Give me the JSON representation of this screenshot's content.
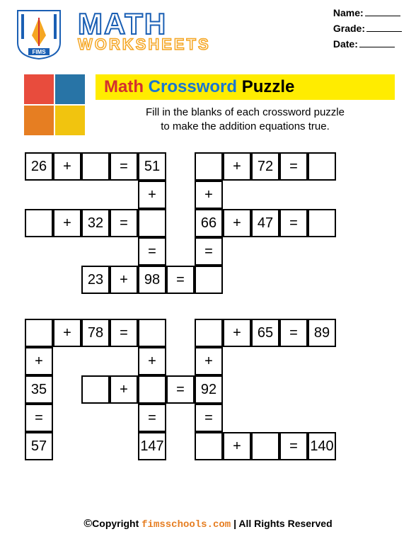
{
  "header": {
    "title_main": "MATH",
    "title_sub": "WORKSHEETS",
    "logo_text": "FIMS",
    "fields": {
      "name": "Name:",
      "grade": "Grade:",
      "date": "Date:"
    }
  },
  "banner": {
    "w1": "Math",
    "w2": "Crossword",
    "w3": "Puzzle"
  },
  "instructions": "Fill in the blanks of each crossword puzzle\nto make the addition equations true.",
  "colors": {
    "banner_bg": "#ffec00",
    "w1": "#d32f2f",
    "w2": "#1976d2",
    "w3": "#000000",
    "pz_red": "#e84c3d",
    "pz_blue": "#2874a6",
    "pz_orange": "#e67e22",
    "pz_yellow": "#f1c40f"
  },
  "grid1": {
    "cell_size": 40,
    "cells": [
      {
        "r": 0,
        "c": 0,
        "v": "26",
        "b": 1
      },
      {
        "r": 0,
        "c": 1,
        "v": "+",
        "b": 1
      },
      {
        "r": 0,
        "c": 2,
        "v": "",
        "b": 1
      },
      {
        "r": 0,
        "c": 3,
        "v": "=",
        "b": 1
      },
      {
        "r": 0,
        "c": 4,
        "v": "51",
        "b": 1
      },
      {
        "r": 0,
        "c": 6,
        "v": "",
        "b": 1
      },
      {
        "r": 0,
        "c": 7,
        "v": "+",
        "b": 1
      },
      {
        "r": 0,
        "c": 8,
        "v": "72",
        "b": 1
      },
      {
        "r": 0,
        "c": 9,
        "v": "=",
        "b": 1
      },
      {
        "r": 0,
        "c": 10,
        "v": "",
        "b": 1
      },
      {
        "r": 1,
        "c": 4,
        "v": "+",
        "b": 1
      },
      {
        "r": 1,
        "c": 6,
        "v": "+",
        "b": 1
      },
      {
        "r": 2,
        "c": 0,
        "v": "",
        "b": 1
      },
      {
        "r": 2,
        "c": 1,
        "v": "+",
        "b": 1
      },
      {
        "r": 2,
        "c": 2,
        "v": "32",
        "b": 1
      },
      {
        "r": 2,
        "c": 3,
        "v": "=",
        "b": 1
      },
      {
        "r": 2,
        "c": 4,
        "v": "",
        "b": 1
      },
      {
        "r": 2,
        "c": 6,
        "v": "66",
        "b": 1
      },
      {
        "r": 2,
        "c": 7,
        "v": "+",
        "b": 1
      },
      {
        "r": 2,
        "c": 8,
        "v": "47",
        "b": 1
      },
      {
        "r": 2,
        "c": 9,
        "v": "=",
        "b": 1
      },
      {
        "r": 2,
        "c": 10,
        "v": "",
        "b": 1
      },
      {
        "r": 3,
        "c": 4,
        "v": "=",
        "b": 1
      },
      {
        "r": 3,
        "c": 6,
        "v": "=",
        "b": 1
      },
      {
        "r": 4,
        "c": 2,
        "v": "23",
        "b": 1
      },
      {
        "r": 4,
        "c": 3,
        "v": "+",
        "b": 1
      },
      {
        "r": 4,
        "c": 4,
        "v": "98",
        "b": 1
      },
      {
        "r": 4,
        "c": 5,
        "v": "=",
        "b": 1
      },
      {
        "r": 4,
        "c": 6,
        "v": "",
        "b": 1
      }
    ]
  },
  "grid2": {
    "cell_size": 40,
    "cells": [
      {
        "r": 0,
        "c": 0,
        "v": "",
        "b": 1
      },
      {
        "r": 0,
        "c": 1,
        "v": "+",
        "b": 1
      },
      {
        "r": 0,
        "c": 2,
        "v": "78",
        "b": 1
      },
      {
        "r": 0,
        "c": 3,
        "v": "=",
        "b": 1
      },
      {
        "r": 0,
        "c": 4,
        "v": "",
        "b": 1
      },
      {
        "r": 0,
        "c": 6,
        "v": "",
        "b": 1
      },
      {
        "r": 0,
        "c": 7,
        "v": "+",
        "b": 1
      },
      {
        "r": 0,
        "c": 8,
        "v": "65",
        "b": 1
      },
      {
        "r": 0,
        "c": 9,
        "v": "=",
        "b": 1
      },
      {
        "r": 0,
        "c": 10,
        "v": "89",
        "b": 1
      },
      {
        "r": 1,
        "c": 0,
        "v": "+",
        "b": 1
      },
      {
        "r": 1,
        "c": 4,
        "v": "+",
        "b": 1
      },
      {
        "r": 1,
        "c": 6,
        "v": "+",
        "b": 1
      },
      {
        "r": 2,
        "c": 0,
        "v": "35",
        "b": 1
      },
      {
        "r": 2,
        "c": 2,
        "v": "",
        "b": 1
      },
      {
        "r": 2,
        "c": 3,
        "v": "+",
        "b": 1
      },
      {
        "r": 2,
        "c": 4,
        "v": "",
        "b": 1
      },
      {
        "r": 2,
        "c": 5,
        "v": "=",
        "b": 1
      },
      {
        "r": 2,
        "c": 6,
        "v": "92",
        "b": 1
      },
      {
        "r": 3,
        "c": 0,
        "v": "=",
        "b": 1
      },
      {
        "r": 3,
        "c": 4,
        "v": "=",
        "b": 1
      },
      {
        "r": 3,
        "c": 6,
        "v": "=",
        "b": 1
      },
      {
        "r": 4,
        "c": 0,
        "v": "57",
        "b": 1
      },
      {
        "r": 4,
        "c": 4,
        "v": "147",
        "b": 1
      },
      {
        "r": 4,
        "c": 6,
        "v": "",
        "b": 1
      },
      {
        "r": 4,
        "c": 7,
        "v": "+",
        "b": 1
      },
      {
        "r": 4,
        "c": 8,
        "v": "",
        "b": 1
      },
      {
        "r": 4,
        "c": 9,
        "v": "=",
        "b": 1
      },
      {
        "r": 4,
        "c": 10,
        "v": "140",
        "b": 1
      }
    ]
  },
  "footer": {
    "copyright_symbol": "©",
    "copyright": "Copyright",
    "site": "fimsschools.com",
    "rights": "| All Rights Reserved"
  }
}
